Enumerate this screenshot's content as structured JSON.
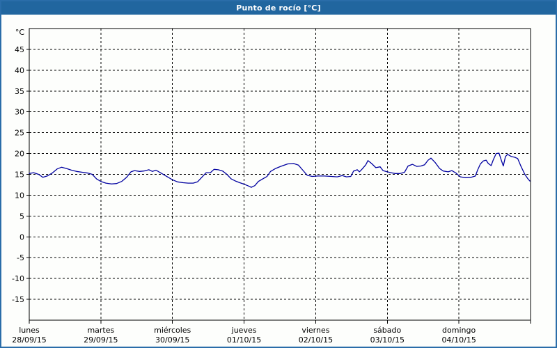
{
  "window": {
    "title": "Punto de rocío [°C]"
  },
  "colors": {
    "titlebar_bg": "#21669f",
    "frame": "#2a6da9",
    "plot_border": "#000000",
    "grid": "#000000",
    "line": "#0000a0",
    "background": "#fdfefc",
    "label_text": "#000000"
  },
  "chart_data": {
    "type": "line",
    "title": "Punto de rocío [°C]",
    "ylabel": "°C",
    "ylim": [
      -20,
      50
    ],
    "xlim_days": [
      0,
      7
    ],
    "grid": "dashed",
    "legend": "none",
    "y_ticks": [
      45,
      40,
      35,
      30,
      25,
      20,
      15,
      10,
      5,
      0,
      -5,
      -10,
      -15
    ],
    "x_days": [
      {
        "name": "lunes",
        "date": "28/09/15"
      },
      {
        "name": "martes",
        "date": "29/09/15"
      },
      {
        "name": "miércoles",
        "date": "30/09/15"
      },
      {
        "name": "jueves",
        "date": "01/10/15"
      },
      {
        "name": "viernes",
        "date": "02/10/15"
      },
      {
        "name": "sábado",
        "date": "03/10/15"
      },
      {
        "name": "domingo",
        "date": "04/10/15"
      }
    ],
    "series": [
      {
        "name": "Punto de rocío",
        "color": "#0000a0",
        "points": [
          [
            0.0,
            15.2
          ],
          [
            0.06,
            15.4
          ],
          [
            0.13,
            15.0
          ],
          [
            0.19,
            14.3
          ],
          [
            0.25,
            14.6
          ],
          [
            0.32,
            15.3
          ],
          [
            0.39,
            16.3
          ],
          [
            0.45,
            16.7
          ],
          [
            0.52,
            16.4
          ],
          [
            0.59,
            16.0
          ],
          [
            0.66,
            15.7
          ],
          [
            0.74,
            15.5
          ],
          [
            0.82,
            15.3
          ],
          [
            0.88,
            15.0
          ],
          [
            0.94,
            13.9
          ],
          [
            1.0,
            13.3
          ],
          [
            1.07,
            12.9
          ],
          [
            1.15,
            12.7
          ],
          [
            1.22,
            12.8
          ],
          [
            1.29,
            13.3
          ],
          [
            1.36,
            14.3
          ],
          [
            1.42,
            15.6
          ],
          [
            1.47,
            15.9
          ],
          [
            1.54,
            15.7
          ],
          [
            1.6,
            15.8
          ],
          [
            1.67,
            16.1
          ],
          [
            1.72,
            15.7
          ],
          [
            1.77,
            16.0
          ],
          [
            1.83,
            15.4
          ],
          [
            1.89,
            14.8
          ],
          [
            1.94,
            14.3
          ],
          [
            2.0,
            13.7
          ],
          [
            2.07,
            13.2
          ],
          [
            2.15,
            13.0
          ],
          [
            2.22,
            12.9
          ],
          [
            2.29,
            12.9
          ],
          [
            2.35,
            13.2
          ],
          [
            2.41,
            14.3
          ],
          [
            2.47,
            15.4
          ],
          [
            2.53,
            15.4
          ],
          [
            2.58,
            16.2
          ],
          [
            2.64,
            16.1
          ],
          [
            2.7,
            15.8
          ],
          [
            2.76,
            15.0
          ],
          [
            2.82,
            13.9
          ],
          [
            2.88,
            13.4
          ],
          [
            2.94,
            13.0
          ],
          [
            2.99,
            12.7
          ],
          [
            3.05,
            12.3
          ],
          [
            3.1,
            11.9
          ],
          [
            3.15,
            12.3
          ],
          [
            3.2,
            13.3
          ],
          [
            3.26,
            13.9
          ],
          [
            3.32,
            14.5
          ],
          [
            3.37,
            15.7
          ],
          [
            3.44,
            16.4
          ],
          [
            3.51,
            16.9
          ],
          [
            3.61,
            17.5
          ],
          [
            3.69,
            17.6
          ],
          [
            3.76,
            17.2
          ],
          [
            3.82,
            16.0
          ],
          [
            3.88,
            14.8
          ],
          [
            3.95,
            14.5
          ],
          [
            4.03,
            14.6
          ],
          [
            4.12,
            14.6
          ],
          [
            4.22,
            14.5
          ],
          [
            4.3,
            14.4
          ],
          [
            4.37,
            14.7
          ],
          [
            4.43,
            14.4
          ],
          [
            4.49,
            14.5
          ],
          [
            4.53,
            15.8
          ],
          [
            4.58,
            16.1
          ],
          [
            4.61,
            15.6
          ],
          [
            4.65,
            16.3
          ],
          [
            4.7,
            17.3
          ],
          [
            4.73,
            18.3
          ],
          [
            4.78,
            17.6
          ],
          [
            4.84,
            16.6
          ],
          [
            4.9,
            16.8
          ],
          [
            4.94,
            15.9
          ],
          [
            5.0,
            15.6
          ],
          [
            5.05,
            15.4
          ],
          [
            5.11,
            15.2
          ],
          [
            5.18,
            15.2
          ],
          [
            5.24,
            15.5
          ],
          [
            5.29,
            17.0
          ],
          [
            5.35,
            17.4
          ],
          [
            5.41,
            16.9
          ],
          [
            5.47,
            17.0
          ],
          [
            5.52,
            17.3
          ],
          [
            5.57,
            18.4
          ],
          [
            5.61,
            18.9
          ],
          [
            5.67,
            17.8
          ],
          [
            5.73,
            16.4
          ],
          [
            5.78,
            15.8
          ],
          [
            5.85,
            15.6
          ],
          [
            5.9,
            15.9
          ],
          [
            5.96,
            15.3
          ],
          [
            6.02,
            14.4
          ],
          [
            6.1,
            14.2
          ],
          [
            6.17,
            14.3
          ],
          [
            6.23,
            14.6
          ],
          [
            6.26,
            16.0
          ],
          [
            6.3,
            17.5
          ],
          [
            6.34,
            18.2
          ],
          [
            6.38,
            18.4
          ],
          [
            6.41,
            17.6
          ],
          [
            6.45,
            17.1
          ],
          [
            6.48,
            18.5
          ],
          [
            6.52,
            20.0
          ],
          [
            6.56,
            20.1
          ],
          [
            6.59,
            18.5
          ],
          [
            6.62,
            17.0
          ],
          [
            6.65,
            19.3
          ],
          [
            6.68,
            19.8
          ],
          [
            6.73,
            19.3
          ],
          [
            6.78,
            19.1
          ],
          [
            6.82,
            18.8
          ],
          [
            6.87,
            16.8
          ],
          [
            6.92,
            15.0
          ],
          [
            6.96,
            14.0
          ],
          [
            6.99,
            13.4
          ]
        ]
      }
    ]
  }
}
